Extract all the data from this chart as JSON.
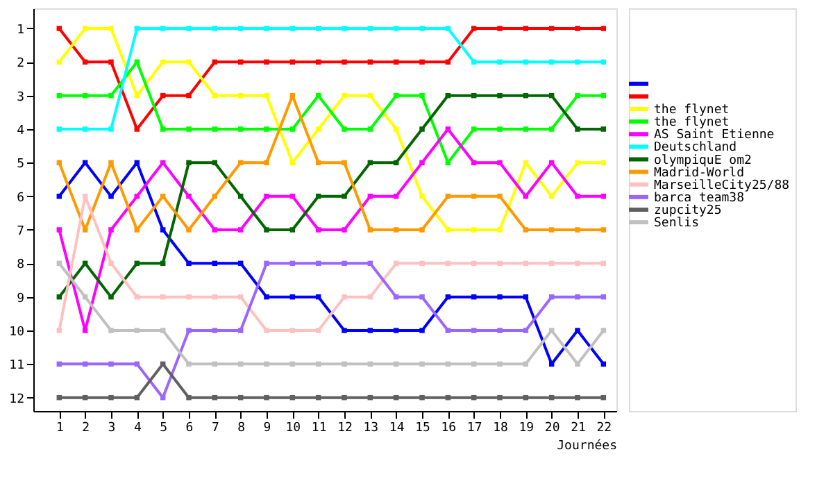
{
  "chart_data": {
    "type": "line",
    "xlabel": "Journées",
    "x": [
      1,
      2,
      3,
      4,
      5,
      6,
      7,
      8,
      9,
      10,
      11,
      12,
      13,
      14,
      15,
      16,
      17,
      18,
      19,
      20,
      21,
      22
    ],
    "xlim": [
      0,
      22.5
    ],
    "xticks": [
      1,
      2,
      3,
      4,
      5,
      6,
      7,
      8,
      9,
      10,
      11,
      12,
      13,
      14,
      15,
      16,
      17,
      18,
      19,
      20,
      21,
      22
    ],
    "ylim": [
      12.4,
      0.4
    ],
    "yticks": [
      1,
      2,
      3,
      4,
      5,
      6,
      7,
      8,
      9,
      10,
      11,
      12
    ],
    "grid": false,
    "legend": "right",
    "marker": "square",
    "line_style": "solid",
    "series": [
      {
        "color": "#0000ff",
        "values": [
          6,
          5,
          6,
          5,
          7,
          8,
          8,
          8,
          9,
          9,
          9,
          10,
          10,
          10,
          10,
          9,
          9,
          9,
          9,
          11,
          10,
          11
        ]
      },
      {
        "color": "#ff0000",
        "values": [
          1,
          2,
          2,
          4,
          3,
          3,
          2,
          2,
          2,
          2,
          2,
          2,
          2,
          2,
          2,
          2,
          1,
          1,
          1,
          1,
          1,
          1
        ]
      },
      {
        "name": "the flynet",
        "color": "#ffff00",
        "values": [
          2,
          1,
          1,
          3,
          2,
          2,
          3,
          3,
          3,
          5,
          4,
          3,
          3,
          4,
          6,
          7,
          7,
          7,
          5,
          6,
          5,
          5
        ]
      },
      {
        "name": "the flynet",
        "color": "#00ff00",
        "values": [
          3,
          3,
          3,
          2,
          4,
          4,
          4,
          4,
          4,
          4,
          3,
          4,
          4,
          3,
          3,
          5,
          4,
          4,
          4,
          4,
          3,
          3
        ]
      },
      {
        "name": "AS  Saint Etienne",
        "color": "#ff00ff",
        "values": [
          7,
          10,
          7,
          6,
          5,
          6,
          7,
          7,
          6,
          6,
          7,
          7,
          6,
          6,
          5,
          4,
          5,
          5,
          6,
          5,
          6,
          6
        ]
      },
      {
        "name": "Deutschland",
        "color": "#00ffff",
        "values": [
          4,
          4,
          4,
          1,
          1,
          1,
          1,
          1,
          1,
          1,
          1,
          1,
          1,
          1,
          1,
          1,
          2,
          2,
          2,
          2,
          2,
          2
        ]
      },
      {
        "name": "olympiquE om2",
        "color": "#006600",
        "values": [
          9,
          8,
          9,
          8,
          8,
          5,
          5,
          6,
          7,
          7,
          6,
          6,
          5,
          5,
          4,
          3,
          3,
          3,
          3,
          3,
          4,
          4
        ]
      },
      {
        "name": "Madrid-World",
        "color": "#ff9900",
        "values": [
          5,
          7,
          5,
          7,
          6,
          7,
          6,
          5,
          5,
          3,
          5,
          5,
          7,
          7,
          7,
          6,
          6,
          6,
          7,
          7,
          7,
          7
        ]
      },
      {
        "name": "MarseilleCity25/88",
        "color": "#ffc0c0",
        "values": [
          10,
          6,
          8,
          9,
          9,
          9,
          9,
          9,
          10,
          10,
          10,
          9,
          9,
          8,
          8,
          8,
          8,
          8,
          8,
          8,
          8,
          8
        ]
      },
      {
        "name": "barca team38",
        "color": "#9966ff",
        "values": [
          11,
          11,
          11,
          11,
          12,
          10,
          10,
          10,
          8,
          8,
          8,
          8,
          8,
          9,
          9,
          10,
          10,
          10,
          10,
          9,
          9,
          9
        ]
      },
      {
        "name": "zupcity25",
        "color": "#606060",
        "values": [
          12,
          12,
          12,
          12,
          11,
          12,
          12,
          12,
          12,
          12,
          12,
          12,
          12,
          12,
          12,
          12,
          12,
          12,
          12,
          12,
          12,
          12
        ]
      },
      {
        "name": "Senlis",
        "color": "#c0c0c0",
        "values": [
          8,
          9,
          10,
          10,
          10,
          11,
          11,
          11,
          11,
          11,
          11,
          11,
          11,
          11,
          11,
          11,
          11,
          11,
          11,
          10,
          11,
          10
        ]
      }
    ]
  }
}
